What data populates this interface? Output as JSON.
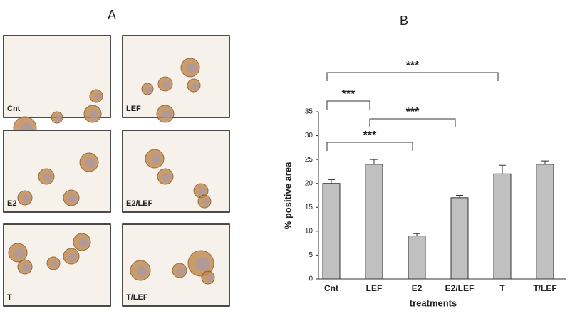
{
  "panel_a": {
    "title": "A",
    "images": [
      {
        "label": "Cnt"
      },
      {
        "label": "LEF"
      },
      {
        "label": "E2"
      },
      {
        "label": "E2/LEF"
      },
      {
        "label": "T"
      },
      {
        "label": "T/LEF"
      }
    ]
  },
  "chart_data": {
    "type": "bar",
    "title": "B",
    "x_label": "treatments",
    "y_label": "% positive area",
    "categories": [
      "Cnt",
      "LEF",
      "E2",
      "E2/LEF",
      "T",
      "T/LEF"
    ],
    "values": [
      20,
      24,
      9,
      17,
      22,
      24
    ],
    "errors": [
      0.8,
      1,
      0.5,
      0.5,
      1.8,
      0.7
    ],
    "color": "#c0c0c0",
    "ylim": [
      0,
      35
    ],
    "yticks": [
      0,
      5,
      10,
      15,
      20,
      25,
      30,
      35
    ],
    "comparisons": [
      {
        "pair": [
          0,
          4
        ],
        "label": "***"
      },
      {
        "pair": [
          0,
          1
        ],
        "label": "***"
      },
      {
        "pair": [
          1,
          3
        ],
        "label": "***"
      },
      {
        "pair": [
          0,
          2
        ],
        "label": "***"
      }
    ]
  }
}
